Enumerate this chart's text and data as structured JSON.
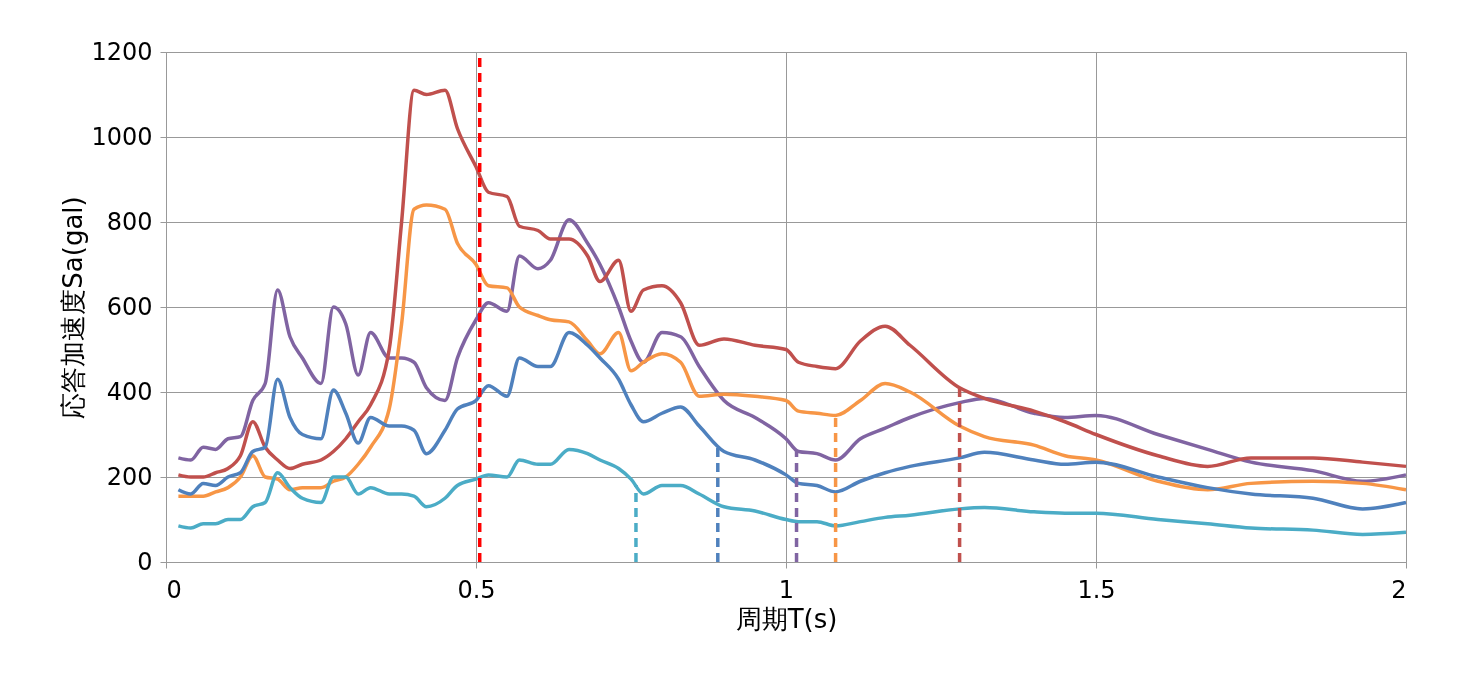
{
  "chart_data": {
    "type": "line",
    "xlabel": "周期T(s)",
    "ylabel": "応答加速度Sa(gal)",
    "x": [
      0.02,
      0.04,
      0.06,
      0.08,
      0.1,
      0.12,
      0.14,
      0.16,
      0.18,
      0.2,
      0.22,
      0.25,
      0.27,
      0.29,
      0.31,
      0.33,
      0.36,
      0.38,
      0.4,
      0.42,
      0.45,
      0.47,
      0.5,
      0.52,
      0.55,
      0.57,
      0.6,
      0.62,
      0.65,
      0.68,
      0.7,
      0.73,
      0.75,
      0.77,
      0.8,
      0.83,
      0.86,
      0.9,
      0.95,
      1.0,
      1.02,
      1.05,
      1.08,
      1.12,
      1.16,
      1.2,
      1.28,
      1.32,
      1.4,
      1.45,
      1.5,
      1.6,
      1.68,
      1.75,
      1.85,
      1.93,
      2.0
    ],
    "series": [
      {
        "color": "#8064a2",
        "values": [
          245,
          240,
          270,
          265,
          290,
          295,
          380,
          420,
          640,
          530,
          480,
          420,
          600,
          560,
          440,
          540,
          480,
          480,
          470,
          410,
          380,
          480,
          570,
          610,
          590,
          720,
          690,
          710,
          805,
          750,
          700,
          600,
          520,
          470,
          540,
          530,
          460,
          380,
          340,
          290,
          260,
          255,
          240,
          290,
          315,
          340,
          375,
          385,
          350,
          340,
          345,
          300,
          265,
          235,
          215,
          190,
          205
        ]
      },
      {
        "color": "#c0504d",
        "values": [
          205,
          200,
          200,
          210,
          220,
          250,
          330,
          270,
          240,
          220,
          230,
          240,
          260,
          290,
          330,
          370,
          500,
          800,
          1110,
          1100,
          1110,
          1020,
          930,
          870,
          860,
          790,
          780,
          760,
          760,
          720,
          660,
          710,
          590,
          640,
          650,
          610,
          510,
          525,
          510,
          500,
          470,
          460,
          455,
          520,
          555,
          510,
          410,
          385,
          355,
          330,
          300,
          250,
          225,
          245,
          245,
          235,
          225
        ]
      },
      {
        "color": "#f79646",
        "values": [
          155,
          155,
          155,
          165,
          175,
          200,
          250,
          200,
          195,
          170,
          175,
          175,
          190,
          200,
          230,
          270,
          360,
          560,
          830,
          840,
          830,
          750,
          700,
          650,
          645,
          600,
          580,
          570,
          565,
          520,
          490,
          540,
          450,
          470,
          490,
          470,
          390,
          395,
          390,
          380,
          355,
          350,
          345,
          380,
          420,
          400,
          320,
          295,
          275,
          250,
          240,
          190,
          170,
          185,
          190,
          185,
          170
        ]
      },
      {
        "color": "#4f81bd",
        "values": [
          170,
          160,
          185,
          180,
          200,
          210,
          260,
          270,
          430,
          340,
          300,
          290,
          405,
          350,
          280,
          340,
          320,
          320,
          310,
          255,
          310,
          360,
          380,
          415,
          390,
          480,
          460,
          460,
          540,
          510,
          480,
          430,
          370,
          330,
          350,
          365,
          320,
          260,
          240,
          205,
          185,
          180,
          165,
          190,
          210,
          225,
          245,
          258,
          240,
          230,
          235,
          200,
          175,
          160,
          150,
          125,
          140
        ]
      },
      {
        "color": "#4bacc6",
        "values": [
          85,
          80,
          90,
          90,
          100,
          100,
          130,
          140,
          210,
          175,
          150,
          140,
          200,
          200,
          160,
          175,
          160,
          160,
          155,
          130,
          150,
          180,
          195,
          205,
          200,
          240,
          230,
          230,
          265,
          255,
          240,
          220,
          195,
          160,
          180,
          180,
          160,
          130,
          120,
          100,
          95,
          95,
          85,
          95,
          105,
          110,
          125,
          128,
          118,
          115,
          115,
          100,
          90,
          80,
          75,
          65,
          70
        ]
      }
    ],
    "xlim": [
      0,
      2
    ],
    "xticks": [
      0,
      0.5,
      1,
      1.5,
      2
    ],
    "ylim": [
      0,
      1200
    ],
    "yticks": [
      0,
      200,
      400,
      600,
      800,
      1000,
      1200
    ],
    "grid": true,
    "line_style": "solid",
    "ref_lines": [
      {
        "axis": "x",
        "value": 0.506,
        "color": "#ff0000",
        "line_style": "dashed"
      },
      {
        "axis": "x",
        "value": 0.758,
        "color": "#4bacc6",
        "line_style": "dashed"
      },
      {
        "axis": "x",
        "value": 0.89,
        "color": "#4f81bd",
        "line_style": "dashed"
      },
      {
        "axis": "x",
        "value": 1.017,
        "color": "#8064a2",
        "line_style": "dashed"
      },
      {
        "axis": "x",
        "value": 1.08,
        "color": "#f79646",
        "line_style": "dashed"
      },
      {
        "axis": "x",
        "value": 1.28,
        "color": "#c0504d",
        "line_style": "dashed"
      }
    ]
  }
}
